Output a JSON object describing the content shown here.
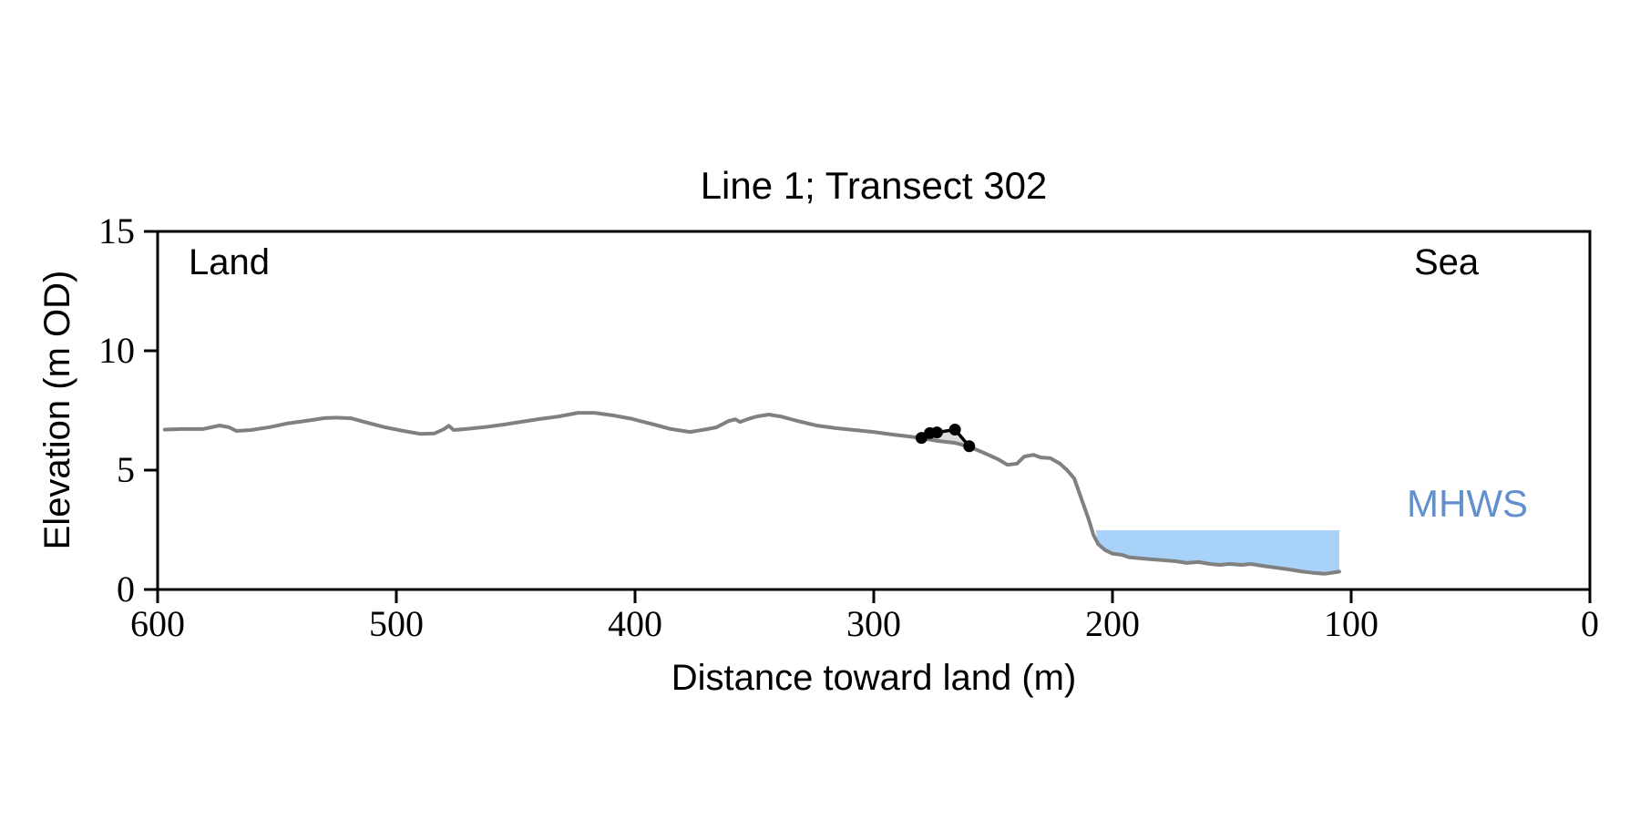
{
  "chart_data": {
    "type": "line",
    "title": "Line 1; Transect 302",
    "xlabel": "Distance toward land (m)",
    "ylabel": "Elevation (m OD)",
    "xlim": [
      600,
      0
    ],
    "ylim": [
      0,
      15
    ],
    "x_axis_reversed": true,
    "grid": false,
    "xticks": [
      600,
      500,
      400,
      300,
      200,
      100,
      0
    ],
    "xtick_labels": [
      "600",
      "500",
      "400",
      "300",
      "200",
      "100",
      "0"
    ],
    "yticks": [
      15,
      10,
      5,
      0
    ],
    "ytick_labels": [
      "15",
      "10",
      "5",
      "0"
    ],
    "annotations": {
      "land_label": "Land",
      "sea_label": "Sea",
      "mhws_label": "MHWS"
    },
    "series": [
      {
        "name": "ground-profile",
        "style": "line",
        "color": "#808080",
        "points": [
          [
            597,
            6.7
          ],
          [
            590,
            6.72
          ],
          [
            581,
            6.72
          ],
          [
            574,
            6.87
          ],
          [
            570,
            6.79
          ],
          [
            567,
            6.64
          ],
          [
            561,
            6.68
          ],
          [
            553,
            6.8
          ],
          [
            546,
            6.95
          ],
          [
            538,
            7.06
          ],
          [
            530,
            7.18
          ],
          [
            525,
            7.2
          ],
          [
            519,
            7.17
          ],
          [
            512,
            6.98
          ],
          [
            505,
            6.8
          ],
          [
            497,
            6.64
          ],
          [
            490,
            6.52
          ],
          [
            484,
            6.54
          ],
          [
            480,
            6.72
          ],
          [
            478,
            6.86
          ],
          [
            476,
            6.68
          ],
          [
            471,
            6.72
          ],
          [
            463,
            6.8
          ],
          [
            455,
            6.91
          ],
          [
            448,
            7.02
          ],
          [
            440,
            7.14
          ],
          [
            432,
            7.25
          ],
          [
            424,
            7.4
          ],
          [
            417,
            7.4
          ],
          [
            409,
            7.29
          ],
          [
            401,
            7.14
          ],
          [
            398,
            7.06
          ],
          [
            392,
            6.91
          ],
          [
            385,
            6.72
          ],
          [
            377,
            6.6
          ],
          [
            372,
            6.68
          ],
          [
            366,
            6.79
          ],
          [
            361,
            7.05
          ],
          [
            358,
            7.13
          ],
          [
            356,
            7.02
          ],
          [
            353,
            7.13
          ],
          [
            349,
            7.25
          ],
          [
            344,
            7.33
          ],
          [
            339,
            7.25
          ],
          [
            332,
            7.06
          ],
          [
            324,
            6.87
          ],
          [
            316,
            6.76
          ],
          [
            308,
            6.68
          ],
          [
            300,
            6.6
          ],
          [
            292,
            6.49
          ],
          [
            285,
            6.41
          ],
          [
            280,
            6.34
          ],
          [
            273,
            6.22
          ],
          [
            266,
            6.14
          ],
          [
            260,
            5.98
          ],
          [
            254,
            5.73
          ],
          [
            248,
            5.46
          ],
          [
            244,
            5.22
          ],
          [
            240,
            5.27
          ],
          [
            237,
            5.57
          ],
          [
            233,
            5.64
          ],
          [
            230,
            5.53
          ],
          [
            226,
            5.5
          ],
          [
            222,
            5.27
          ],
          [
            219,
            5.0
          ],
          [
            216,
            4.65
          ],
          [
            213,
            3.8
          ],
          [
            210,
            2.95
          ],
          [
            208,
            2.3
          ],
          [
            206,
            1.9
          ],
          [
            203,
            1.65
          ],
          [
            200,
            1.5
          ],
          [
            196,
            1.45
          ],
          [
            193,
            1.35
          ],
          [
            188,
            1.3
          ],
          [
            183,
            1.26
          ],
          [
            178,
            1.22
          ],
          [
            173,
            1.18
          ],
          [
            169,
            1.11
          ],
          [
            164,
            1.15
          ],
          [
            159,
            1.07
          ],
          [
            155,
            1.03
          ],
          [
            151,
            1.07
          ],
          [
            146,
            1.03
          ],
          [
            142,
            1.07
          ],
          [
            137,
            0.99
          ],
          [
            132,
            0.92
          ],
          [
            126,
            0.84
          ],
          [
            121,
            0.76
          ],
          [
            116,
            0.7
          ],
          [
            111,
            0.66
          ],
          [
            108,
            0.7
          ],
          [
            105,
            0.75
          ]
        ]
      },
      {
        "name": "defence-crest",
        "style": "line-markers",
        "color": "#000000",
        "points": [
          [
            280,
            6.35
          ],
          [
            276.5,
            6.55
          ],
          [
            273.5,
            6.58
          ],
          [
            266,
            6.7
          ],
          [
            260,
            6.0
          ]
        ]
      }
    ],
    "mhws": {
      "level_m_od": 2.48,
      "fill_from_distance": 207,
      "fill_to_distance": 105
    },
    "colors": {
      "ground_line": "#808080",
      "defence_line": "#000000",
      "water_fill": "#A9D2F8",
      "defence_fill": "#DCDCDC",
      "mhws_text": "#6190CC",
      "axis": "#000000"
    }
  }
}
